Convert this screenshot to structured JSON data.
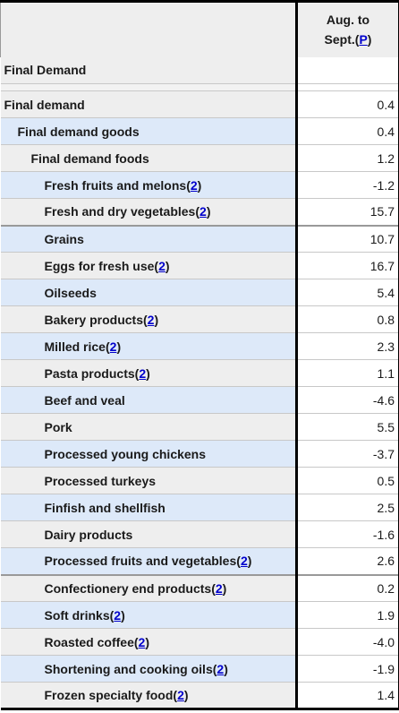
{
  "header": {
    "col2_line1": "Aug. to",
    "col2_line2_prefix": "Sept.(",
    "col2_line2_link": "P",
    "col2_line2_suffix": ")"
  },
  "section_title": "Final Demand",
  "rows": [
    {
      "label": "Final demand",
      "value": "0.4",
      "indent": 0,
      "footnote": ""
    },
    {
      "label": "Final demand goods",
      "value": "0.4",
      "indent": 1,
      "footnote": ""
    },
    {
      "label": "Final demand foods",
      "value": "1.2",
      "indent": 2,
      "footnote": ""
    },
    {
      "label": "Fresh fruits and melons",
      "value": "-1.2",
      "indent": 3,
      "footnote": "2"
    },
    {
      "label": "Fresh and dry vegetables",
      "value": "15.7",
      "indent": 3,
      "footnote": "2"
    },
    {
      "label": "Grains",
      "value": "10.7",
      "indent": 3,
      "footnote": ""
    },
    {
      "label": "Eggs for fresh use",
      "value": "16.7",
      "indent": 3,
      "footnote": "2"
    },
    {
      "label": "Oilseeds",
      "value": "5.4",
      "indent": 3,
      "footnote": ""
    },
    {
      "label": "Bakery products",
      "value": "0.8",
      "indent": 3,
      "footnote": "2"
    },
    {
      "label": "Milled rice",
      "value": "2.3",
      "indent": 3,
      "footnote": "2"
    },
    {
      "label": "Pasta products",
      "value": "1.1",
      "indent": 3,
      "footnote": "2"
    },
    {
      "label": "Beef and veal",
      "value": "-4.6",
      "indent": 3,
      "footnote": ""
    },
    {
      "label": "Pork",
      "value": "5.5",
      "indent": 3,
      "footnote": ""
    },
    {
      "label": "Processed young chickens",
      "value": "-3.7",
      "indent": 3,
      "footnote": ""
    },
    {
      "label": "Processed turkeys",
      "value": "0.5",
      "indent": 3,
      "footnote": ""
    },
    {
      "label": "Finfish and shellfish",
      "value": "2.5",
      "indent": 3,
      "footnote": ""
    },
    {
      "label": "Dairy products",
      "value": "-1.6",
      "indent": 3,
      "footnote": ""
    },
    {
      "label": "Processed fruits and vegetables",
      "value": "2.6",
      "indent": 3,
      "footnote": "2"
    },
    {
      "label": "Confectionery end products",
      "value": "0.2",
      "indent": 3,
      "footnote": "2"
    },
    {
      "label": "Soft drinks",
      "value": "1.9",
      "indent": 3,
      "footnote": "2"
    },
    {
      "label": "Roasted coffee",
      "value": "-4.0",
      "indent": 3,
      "footnote": "2"
    },
    {
      "label": "Shortening and cooking oils",
      "value": "-1.9",
      "indent": 3,
      "footnote": "2"
    },
    {
      "label": "Frozen specialty food",
      "value": "1.4",
      "indent": 3,
      "footnote": "2"
    }
  ]
}
